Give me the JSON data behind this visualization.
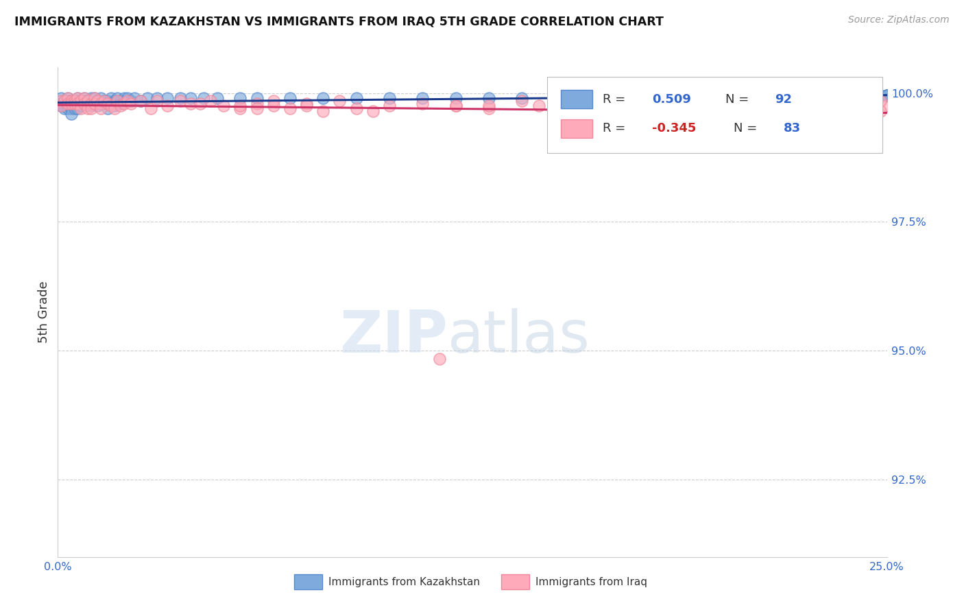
{
  "title": "IMMIGRANTS FROM KAZAKHSTAN VS IMMIGRANTS FROM IRAQ 5TH GRADE CORRELATION CHART",
  "source": "Source: ZipAtlas.com",
  "ylabel": "5th Grade",
  "ytick_labels": [
    "92.5%",
    "95.0%",
    "97.5%",
    "100.0%"
  ],
  "ytick_values": [
    0.925,
    0.95,
    0.975,
    1.0
  ],
  "legend_blue_rval": "0.509",
  "legend_blue_nval": "92",
  "legend_pink_rval": "-0.345",
  "legend_pink_nval": "83",
  "legend_blue_label": "Immigrants from Kazakhstan",
  "legend_pink_label": "Immigrants from Iraq",
  "blue_color": "#7faadd",
  "pink_color": "#ffaabb",
  "blue_edge": "#5588cc",
  "pink_edge": "#ee8899",
  "blue_line_color": "#1a3a8c",
  "pink_line_color": "#cc3366",
  "xmin": 0.0,
  "xmax": 0.25,
  "ymin": 0.91,
  "ymax": 1.005,
  "blue_x": [
    0.001,
    0.001,
    0.001,
    0.002,
    0.002,
    0.002,
    0.002,
    0.003,
    0.003,
    0.003,
    0.003,
    0.003,
    0.004,
    0.004,
    0.004,
    0.004,
    0.005,
    0.005,
    0.005,
    0.005,
    0.006,
    0.006,
    0.006,
    0.007,
    0.007,
    0.007,
    0.008,
    0.008,
    0.008,
    0.009,
    0.009,
    0.009,
    0.01,
    0.01,
    0.011,
    0.011,
    0.012,
    0.012,
    0.013,
    0.013,
    0.014,
    0.014,
    0.015,
    0.015,
    0.016,
    0.016,
    0.017,
    0.017,
    0.018,
    0.019,
    0.019,
    0.02,
    0.021,
    0.022,
    0.023,
    0.025,
    0.027,
    0.03,
    0.033,
    0.037,
    0.04,
    0.044,
    0.048,
    0.055,
    0.06,
    0.07,
    0.08,
    0.09,
    0.1,
    0.11,
    0.12,
    0.13,
    0.14,
    0.15,
    0.16,
    0.17,
    0.18,
    0.19,
    0.2,
    0.21,
    0.215,
    0.22,
    0.23,
    0.235,
    0.24,
    0.245,
    0.248,
    0.25,
    0.25,
    0.25,
    0.25,
    0.25
  ],
  "blue_y": [
    0.999,
    0.998,
    0.9975,
    0.9985,
    0.998,
    0.9975,
    0.997,
    0.999,
    0.9985,
    0.998,
    0.9975,
    0.997,
    0.9985,
    0.998,
    0.997,
    0.996,
    0.9985,
    0.998,
    0.9975,
    0.997,
    0.999,
    0.9985,
    0.997,
    0.9985,
    0.998,
    0.9975,
    0.999,
    0.9985,
    0.998,
    0.9985,
    0.998,
    0.9975,
    0.999,
    0.9975,
    0.999,
    0.998,
    0.9985,
    0.9975,
    0.999,
    0.998,
    0.9985,
    0.998,
    0.9985,
    0.997,
    0.999,
    0.998,
    0.9985,
    0.9975,
    0.999,
    0.9985,
    0.998,
    0.999,
    0.999,
    0.9985,
    0.999,
    0.9985,
    0.999,
    0.999,
    0.999,
    0.999,
    0.999,
    0.999,
    0.999,
    0.999,
    0.999,
    0.999,
    0.999,
    0.999,
    0.999,
    0.999,
    0.999,
    0.999,
    0.999,
    0.999,
    0.999,
    0.999,
    0.999,
    0.999,
    0.999,
    0.999,
    0.9995,
    0.9995,
    0.9995,
    0.9995,
    0.9995,
    0.9995,
    0.9995,
    0.9995,
    0.9995,
    0.9995,
    0.9995,
    0.9995
  ],
  "pink_x": [
    0.001,
    0.001,
    0.002,
    0.003,
    0.003,
    0.004,
    0.004,
    0.005,
    0.005,
    0.006,
    0.006,
    0.007,
    0.007,
    0.008,
    0.008,
    0.009,
    0.009,
    0.01,
    0.01,
    0.011,
    0.011,
    0.012,
    0.013,
    0.013,
    0.014,
    0.015,
    0.016,
    0.017,
    0.018,
    0.019,
    0.02,
    0.021,
    0.022,
    0.025,
    0.028,
    0.03,
    0.033,
    0.037,
    0.04,
    0.043,
    0.046,
    0.05,
    0.055,
    0.06,
    0.065,
    0.07,
    0.075,
    0.085,
    0.09,
    0.1,
    0.11,
    0.12,
    0.13,
    0.14,
    0.15,
    0.16,
    0.17,
    0.18,
    0.19,
    0.2,
    0.21,
    0.22,
    0.23,
    0.24,
    0.25,
    0.055,
    0.065,
    0.12,
    0.145,
    0.165,
    0.21,
    0.23,
    0.24,
    0.245,
    0.248,
    0.248,
    0.06,
    0.075,
    0.13,
    0.165,
    0.08,
    0.095,
    0.115
  ],
  "pink_y": [
    0.9985,
    0.9975,
    0.9985,
    0.999,
    0.998,
    0.9985,
    0.998,
    0.9985,
    0.998,
    0.999,
    0.998,
    0.9985,
    0.997,
    0.999,
    0.998,
    0.9985,
    0.997,
    0.998,
    0.997,
    0.999,
    0.998,
    0.9985,
    0.998,
    0.997,
    0.9985,
    0.998,
    0.9975,
    0.997,
    0.9985,
    0.9975,
    0.998,
    0.9985,
    0.998,
    0.9985,
    0.997,
    0.9985,
    0.9975,
    0.9985,
    0.998,
    0.998,
    0.9985,
    0.9975,
    0.997,
    0.998,
    0.9985,
    0.997,
    0.998,
    0.9985,
    0.997,
    0.9975,
    0.998,
    0.9975,
    0.997,
    0.9985,
    0.9975,
    0.9985,
    0.9975,
    0.998,
    0.9975,
    0.997,
    0.9975,
    0.998,
    0.9975,
    0.997,
    0.9975,
    0.9975,
    0.9975,
    0.9975,
    0.9975,
    0.9975,
    0.9975,
    0.9975,
    0.997,
    0.9975,
    0.9985,
    0.9965,
    0.997,
    0.9975,
    0.9975,
    0.9975,
    0.9965,
    0.9965,
    0.9485
  ]
}
